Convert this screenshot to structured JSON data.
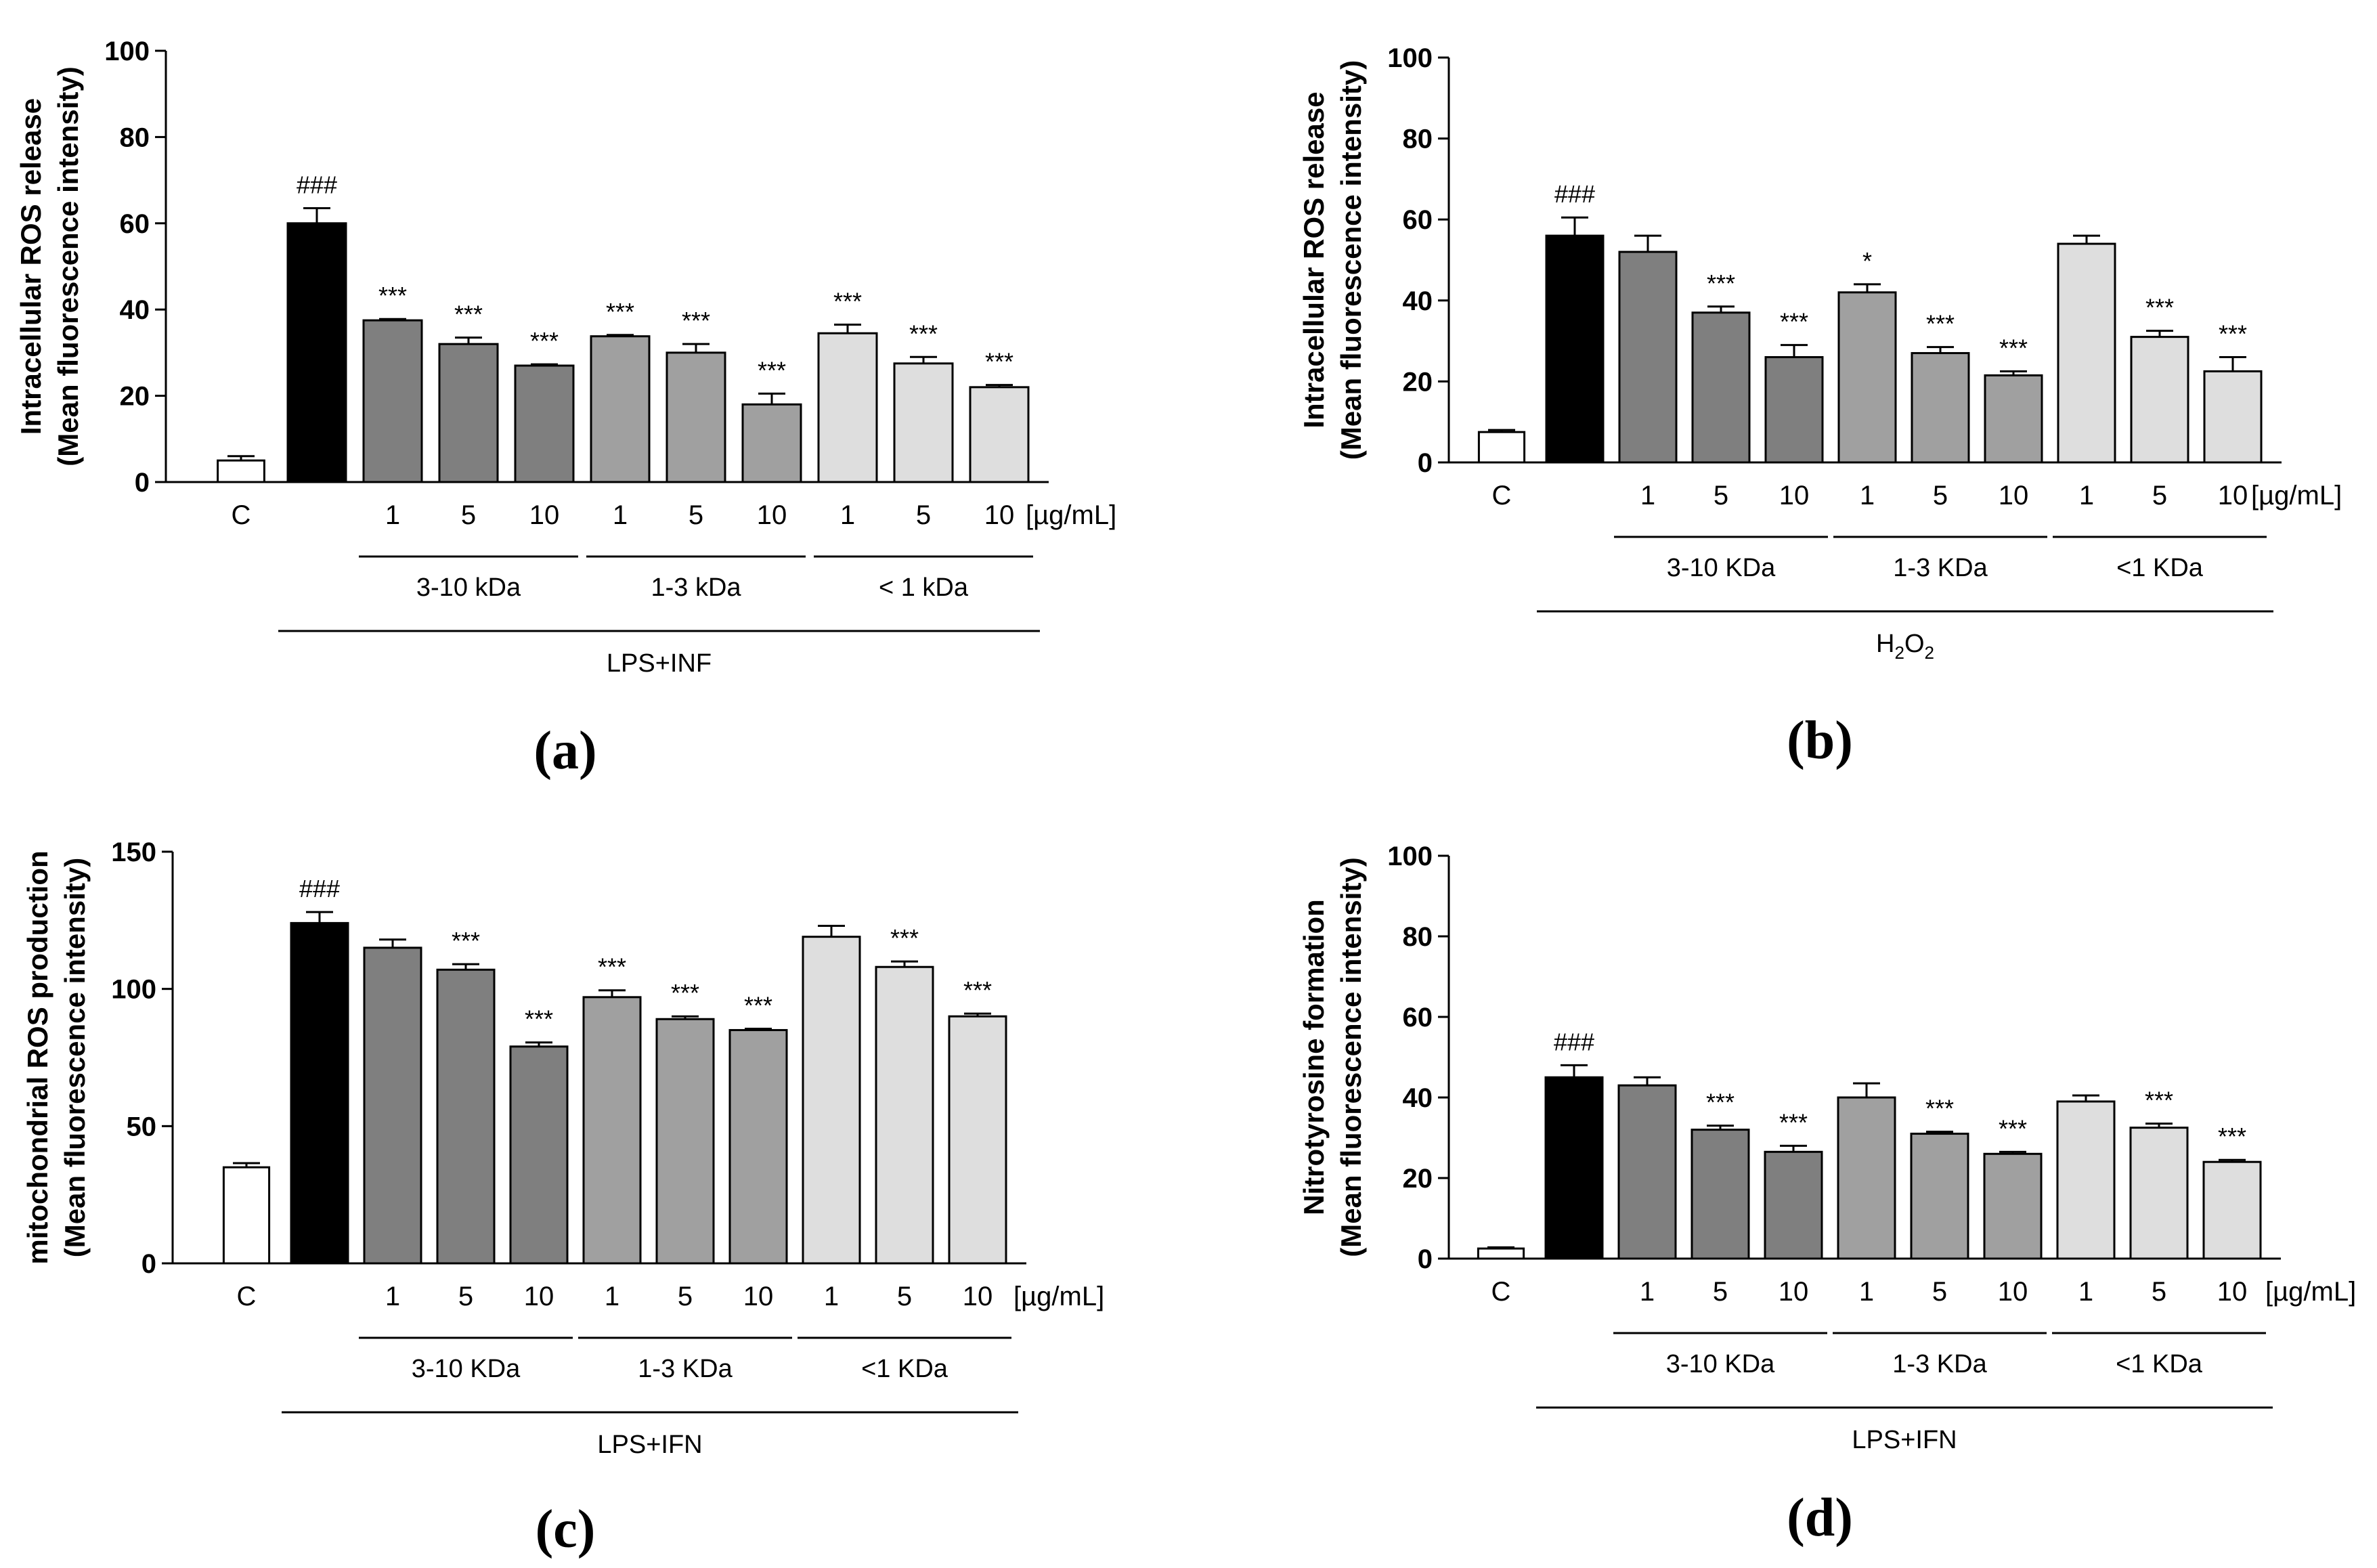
{
  "figure": {
    "unit_label": "[µg/mL]"
  },
  "chart_data": [
    {
      "panel": "(a)",
      "type": "bar",
      "ylabel_line1": "Intracellular ROS release",
      "ylabel_line2": "(Mean fluorescence intensity)",
      "ylim": [
        0,
        100
      ],
      "yticks": [
        0,
        20,
        40,
        60,
        80,
        100
      ],
      "categories": [
        "C",
        "",
        "1",
        "5",
        "10",
        "1",
        "5",
        "10",
        "1",
        "5",
        "10"
      ],
      "values": [
        5,
        60,
        37.5,
        32,
        27,
        33.8,
        30,
        18,
        34.5,
        27.5,
        22
      ],
      "errors": [
        1,
        3.5,
        0.3,
        1.5,
        0.3,
        0.3,
        2,
        2.5,
        2,
        1.5,
        0.5
      ],
      "annotations": [
        "",
        "###",
        "***",
        "***",
        "***",
        "***",
        "***",
        "***",
        "***",
        "***",
        "***"
      ],
      "groups": [
        {
          "label": "3-10 kDa",
          "start": 2,
          "end": 4
        },
        {
          "label": "1-3 kDa",
          "start": 5,
          "end": 7
        },
        {
          "label": "< 1 kDa",
          "start": 8,
          "end": 10
        }
      ],
      "treatment": {
        "label": "LPS+INF",
        "start": 1,
        "end": 10
      }
    },
    {
      "panel": "(b)",
      "type": "bar",
      "ylabel_line1": "Intracellular ROS release",
      "ylabel_line2": "(Mean fluorescence intensity)",
      "ylim": [
        0,
        100
      ],
      "yticks": [
        0,
        20,
        40,
        60,
        80,
        100
      ],
      "categories": [
        "C",
        "",
        "1",
        "5",
        "10",
        "1",
        "5",
        "10",
        "1",
        "5",
        "10"
      ],
      "values": [
        7.5,
        56,
        52,
        37,
        26,
        42,
        27,
        21.5,
        54,
        31,
        22.5
      ],
      "errors": [
        0.5,
        4.5,
        4,
        1.5,
        3,
        2,
        1.5,
        1,
        2,
        1.5,
        3.5
      ],
      "annotations": [
        "",
        "###",
        "",
        "***",
        "***",
        "*",
        "***",
        "***",
        "",
        "***",
        "***"
      ],
      "groups": [
        {
          "label": "3-10 KDa",
          "start": 2,
          "end": 4
        },
        {
          "label": "1-3 KDa",
          "start": 5,
          "end": 7
        },
        {
          "label": "<1 KDa",
          "start": 8,
          "end": 10
        }
      ],
      "treatment": {
        "label": "H",
        "sub1": "2",
        "mid": "O",
        "sub2": "2",
        "start": 1,
        "end": 10
      }
    },
    {
      "panel": "(c)",
      "type": "bar",
      "ylabel_line1": "mitochondrial ROS production",
      "ylabel_line2": "(Mean fluorescence intensity)",
      "ylim": [
        0,
        150
      ],
      "yticks": [
        0,
        50,
        100,
        150
      ],
      "categories": [
        "C",
        "",
        "1",
        "5",
        "10",
        "1",
        "5",
        "10",
        "1",
        "5",
        "10"
      ],
      "values": [
        35,
        124,
        115,
        107,
        79,
        97,
        89,
        85,
        119,
        108,
        90
      ],
      "errors": [
        1.5,
        4,
        3,
        2,
        1.5,
        2.5,
        1,
        0.5,
        4,
        2,
        1
      ],
      "annotations": [
        "",
        "###",
        "",
        "***",
        "***",
        "***",
        "***",
        "***",
        "",
        "***",
        "***"
      ],
      "groups": [
        {
          "label": "3-10 KDa",
          "start": 2,
          "end": 4
        },
        {
          "label": "1-3 KDa",
          "start": 5,
          "end": 7
        },
        {
          "label": "<1 KDa",
          "start": 8,
          "end": 10
        }
      ],
      "treatment": {
        "label": "LPS+IFN",
        "start": 1,
        "end": 10
      }
    },
    {
      "panel": "(d)",
      "type": "bar",
      "ylabel_line1": "Nitrotyrosine formation",
      "ylabel_line2": "(Mean fluorescence intensity)",
      "ylim": [
        0,
        100
      ],
      "yticks": [
        0,
        20,
        40,
        60,
        80,
        100
      ],
      "categories": [
        "C",
        "",
        "1",
        "5",
        "10",
        "1",
        "5",
        "10",
        "1",
        "5",
        "10"
      ],
      "values": [
        2.5,
        45,
        43,
        32,
        26.5,
        40,
        31,
        26,
        39,
        32.5,
        24
      ],
      "errors": [
        0.3,
        3,
        2,
        1,
        1.5,
        3.5,
        0.5,
        0.5,
        1.5,
        1,
        0.5
      ],
      "annotations": [
        "",
        "###",
        "",
        "***",
        "***",
        "",
        "***",
        "***",
        "",
        "***",
        "***"
      ],
      "groups": [
        {
          "label": "3-10 KDa",
          "start": 2,
          "end": 4
        },
        {
          "label": "1-3 KDa",
          "start": 5,
          "end": 7
        },
        {
          "label": "<1 KDa",
          "start": 8,
          "end": 10
        }
      ],
      "treatment": {
        "label": "LPS+IFN",
        "start": 1,
        "end": 10
      }
    }
  ],
  "colors": {
    "control": "#ffffff",
    "stimulus": "#000000",
    "group1": "#7f7f7f",
    "group2": "#a0a0a0",
    "group3": "#dedede",
    "stroke": "#000000"
  }
}
